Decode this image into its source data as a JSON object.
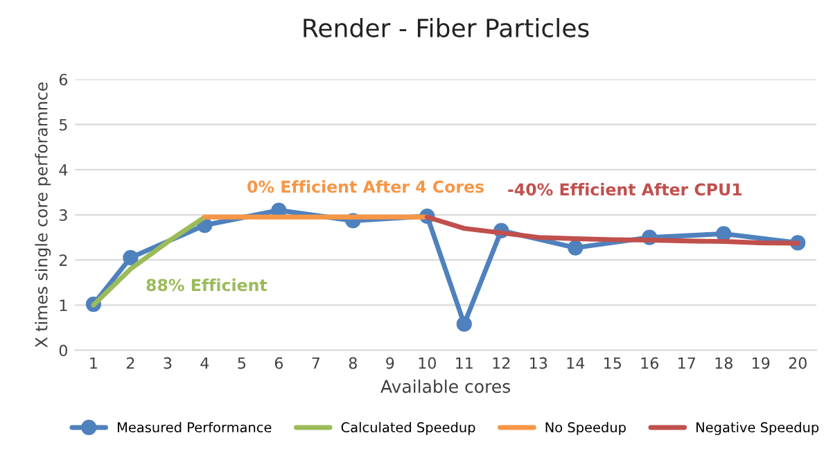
{
  "chart_data": {
    "type": "line",
    "title": "Render - Fiber Particles",
    "xlabel": "Available cores",
    "ylabel": "X times single core perforamnce",
    "categories": [
      "1",
      "2",
      "3",
      "4",
      "5",
      "6",
      "7",
      "8",
      "9",
      "10",
      "11",
      "12",
      "13",
      "14",
      "15",
      "16",
      "17",
      "18",
      "19",
      "20"
    ],
    "series": [
      {
        "name": "Measured Performance",
        "color": "#4f81bd",
        "marker": "circle",
        "values": [
          1.02,
          2.05,
          null,
          2.77,
          null,
          3.1,
          null,
          2.87,
          null,
          2.97,
          0.58,
          2.65,
          null,
          2.27,
          null,
          2.5,
          null,
          2.58,
          null,
          2.38
        ]
      },
      {
        "name": "Calculated Speedup",
        "color": "#9bbb59",
        "marker": "none",
        "values": [
          1.0,
          1.8,
          2.4,
          2.95,
          null,
          null,
          null,
          null,
          null,
          null,
          null,
          null,
          null,
          null,
          null,
          null,
          null,
          null,
          null,
          null
        ]
      },
      {
        "name": "No Speedup",
        "color": "#f79646",
        "marker": "none",
        "values": [
          null,
          null,
          null,
          2.95,
          2.95,
          2.95,
          2.95,
          2.95,
          2.95,
          2.95,
          null,
          null,
          null,
          null,
          null,
          null,
          null,
          null,
          null,
          null
        ]
      },
      {
        "name": "Negative Speedup",
        "color": "#c0504d",
        "marker": "none",
        "values": [
          null,
          null,
          null,
          null,
          null,
          null,
          null,
          null,
          null,
          2.95,
          2.7,
          2.6,
          2.5,
          2.47,
          2.45,
          2.44,
          2.42,
          2.41,
          2.38,
          2.37
        ]
      }
    ],
    "annotations": [
      "88% Efficient",
      "0% Efficient After 4 Cores",
      "-40% Efficient After CPU1"
    ],
    "ylim": [
      0,
      6
    ],
    "yticks": [
      0,
      1,
      2,
      3,
      4,
      5,
      6
    ],
    "grid": "y",
    "legend": "bottom"
  }
}
